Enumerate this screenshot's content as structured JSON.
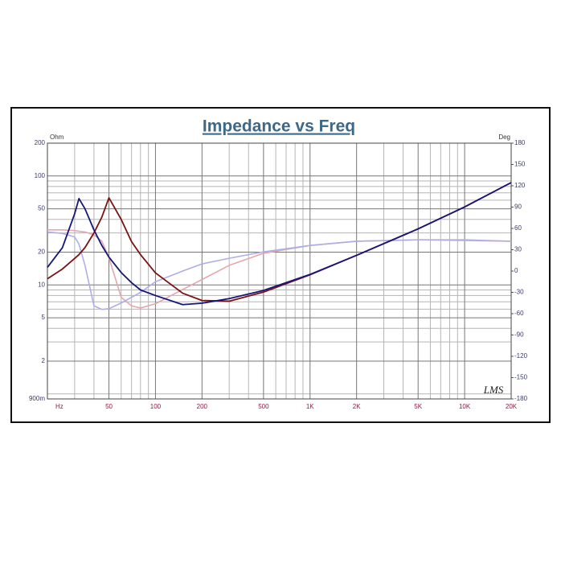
{
  "chart_data": {
    "type": "line",
    "title": "Impedance vs Freq",
    "ylabel": "Ohm",
    "y2label": "Deg",
    "annotation": "LMS",
    "xscale": "log",
    "yscale": "log",
    "grid": true,
    "xlim": [
      20,
      20000
    ],
    "xticks": [
      {
        "value": 20,
        "label": "Hz"
      },
      50,
      100,
      200,
      500,
      {
        "value": 1000,
        "label": "1K"
      },
      {
        "value": 2000,
        "label": "2K"
      },
      {
        "value": 5000,
        "label": "5K"
      },
      {
        "value": 10000,
        "label": "10K"
      },
      {
        "value": 20000,
        "label": "20K"
      }
    ],
    "xminorticks": [
      30,
      40,
      60,
      70,
      80,
      90,
      300,
      400,
      600,
      700,
      800,
      900,
      3000,
      4000,
      6000,
      7000,
      8000,
      9000
    ],
    "ylim": [
      0.9,
      200
    ],
    "yticks": [
      {
        "value": 0.9,
        "label": "900m"
      },
      2,
      5,
      10,
      20,
      50,
      100,
      200
    ],
    "yminorticks": [
      1,
      3,
      4,
      6,
      7,
      8,
      9,
      30,
      40,
      60,
      70,
      80,
      90
    ],
    "y2lim": [
      -180,
      180
    ],
    "y2ticks": [
      -180,
      -150,
      -120,
      -90,
      -60,
      -30,
      0,
      30,
      60,
      90,
      120,
      150,
      180
    ],
    "x": [
      20,
      25,
      30,
      32,
      35,
      40,
      45,
      50,
      60,
      70,
      80,
      100,
      150,
      200,
      300,
      500,
      1000,
      2000,
      5000,
      10000,
      20000
    ],
    "series": [
      {
        "color": "#e3a7ae",
        "axis": "y2",
        "values": [
          58,
          58,
          57,
          56,
          55,
          51,
          42,
          19,
          -37,
          -49,
          -52,
          -46,
          -26,
          -12,
          8,
          25,
          36,
          42,
          44,
          43,
          42
        ]
      },
      {
        "color": "#aeaee6",
        "axis": "y2",
        "values": [
          55,
          53,
          48,
          38,
          8,
          -49,
          -54,
          -53,
          -45,
          -37,
          -30,
          -15,
          0,
          10,
          18,
          27,
          36,
          42,
          44,
          44,
          42
        ]
      },
      {
        "color": "#7a1212",
        "values": [
          11.4,
          14,
          17.5,
          19,
          22,
          30,
          42,
          63,
          40,
          25,
          19,
          12.9,
          8.4,
          7.2,
          7.1,
          8.6,
          12.4,
          18.7,
          32.7,
          52,
          87
        ]
      },
      {
        "color": "#16167a",
        "values": [
          14.5,
          22,
          45,
          62,
          50,
          32,
          23,
          18,
          13,
          10.5,
          9,
          8,
          6.6,
          6.8,
          7.5,
          8.9,
          12.5,
          18.7,
          32.7,
          52,
          87
        ]
      }
    ]
  }
}
